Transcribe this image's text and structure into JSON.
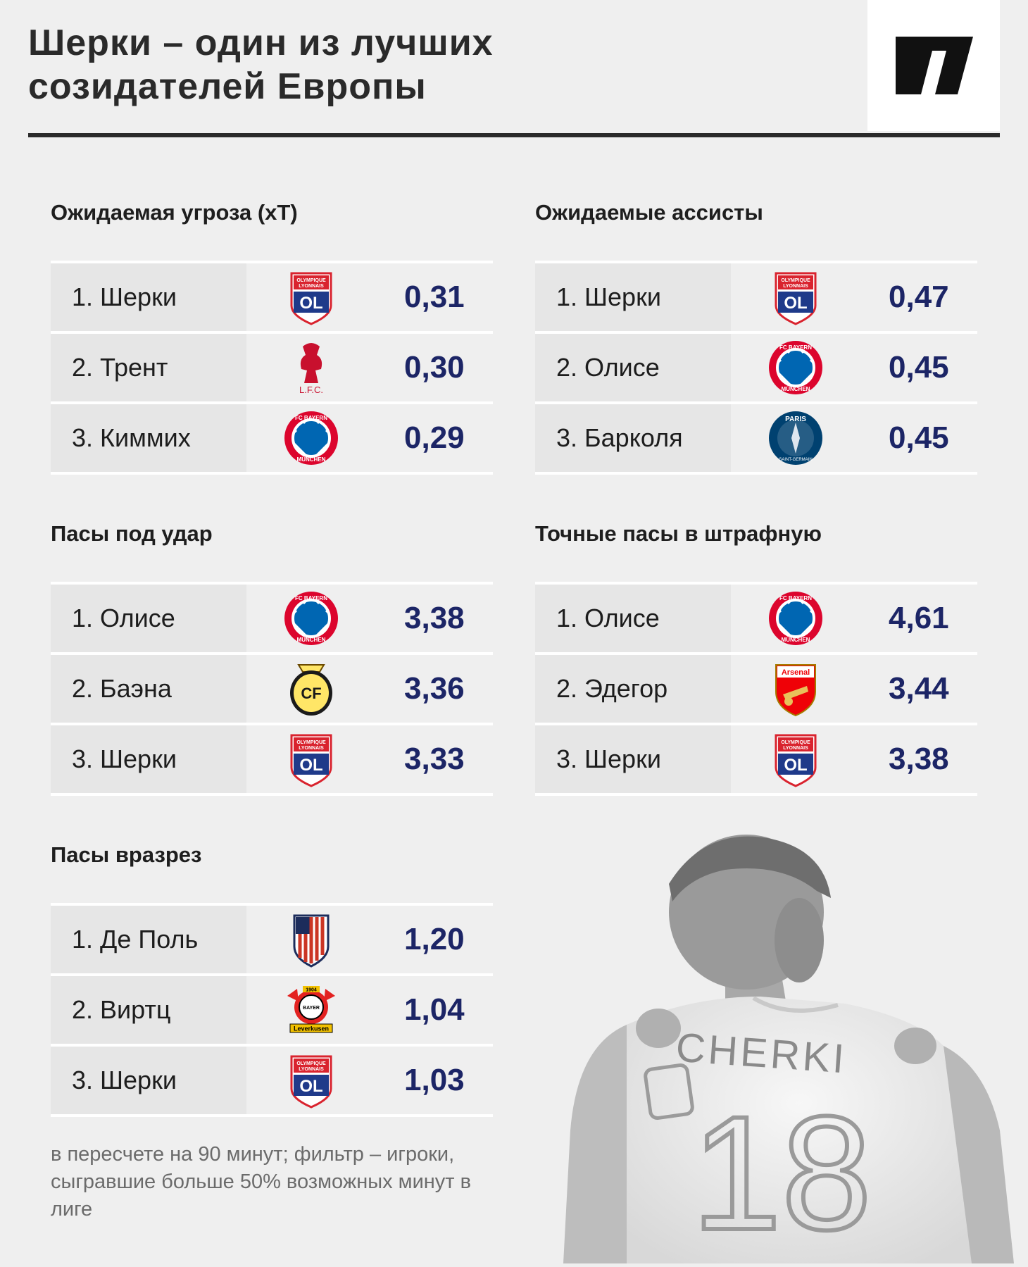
{
  "header": {
    "title_line1": "Шерки – один из лучших",
    "title_line2": "созидателей Европы"
  },
  "sections": [
    {
      "title": "Ожидаемая угроза (xT)",
      "rows": [
        {
          "name": "1. Шерки",
          "club": "Olympique Lyonnais",
          "value": "0,31"
        },
        {
          "name": "2. Трент",
          "club": "Liverpool",
          "value": "0,30"
        },
        {
          "name": "3. Киммих",
          "club": "FC Bayern München",
          "value": "0,29"
        }
      ]
    },
    {
      "title": "Ожидаемые ассисты",
      "rows": [
        {
          "name": "1. Шерки",
          "club": "Olympique Lyonnais",
          "value": "0,47"
        },
        {
          "name": "2. Олисе",
          "club": "FC Bayern München",
          "value": "0,45"
        },
        {
          "name": "3. Барколя",
          "club": "Paris Saint-Germain",
          "value": "0,45"
        }
      ]
    },
    {
      "title": "Пасы под удар",
      "rows": [
        {
          "name": "1. Олисе",
          "club": "FC Bayern München",
          "value": "3,38"
        },
        {
          "name": "2. Баэна",
          "club": "Villarreal CF",
          "value": "3,36"
        },
        {
          "name": "3. Шерки",
          "club": "Olympique Lyonnais",
          "value": "3,33"
        }
      ]
    },
    {
      "title": "Точные пасы в штрафную",
      "rows": [
        {
          "name": "1. Олисе",
          "club": "FC Bayern München",
          "value": "4,61"
        },
        {
          "name": "2. Эдегор",
          "club": "Arsenal",
          "value": "3,44"
        },
        {
          "name": "3. Шерки",
          "club": "Olympique Lyonnais",
          "value": "3,38"
        }
      ]
    },
    {
      "title": "Пасы вразрез",
      "rows": [
        {
          "name": "1. Де Поль",
          "club": "Atlético Madrid",
          "value": "1,20"
        },
        {
          "name": "2. Виртц",
          "club": "Bayer Leverkusen",
          "value": "1,04"
        },
        {
          "name": "3. Шерки",
          "club": "Olympique Lyonnais",
          "value": "1,03"
        }
      ]
    }
  ],
  "crest_text": {
    "lyon_top": "OLYMPIQUE",
    "lyon_bottom": "LYONNAIS",
    "lyon_mono": "OL",
    "lfc": "L.F.C.",
    "bayern": "FC BAYERN MÜNCHEN",
    "psg_top": "PARIS",
    "psg_bottom": "SAINT-GERMAIN",
    "villarreal": "CF",
    "arsenal": "Arsenal",
    "bayer_year": "1904",
    "bayer": "BAYER",
    "leverkusen": "Leverkusen"
  },
  "footnote": "в пересчете на 90 минут; фильтр – игроки, сыгравшие больше 50% возможных минут в лиге",
  "photo": {
    "shirt_name": "CHERKI",
    "shirt_number": "18"
  },
  "colors": {
    "background": "#efefef",
    "value_text": "#1c2566",
    "rule": "#2a2a2a",
    "lyon_blue": "#1f3a8a",
    "lyon_red": "#d9232e",
    "bayern_red": "#dc052d",
    "bayern_blue": "#0066b2",
    "liverpool_red": "#c8102e",
    "psg_navy": "#004170",
    "villarreal_yellow": "#ffe667",
    "arsenal_red": "#ef0107",
    "atletico_red": "#cb3524",
    "leverkusen_red": "#e32221"
  }
}
